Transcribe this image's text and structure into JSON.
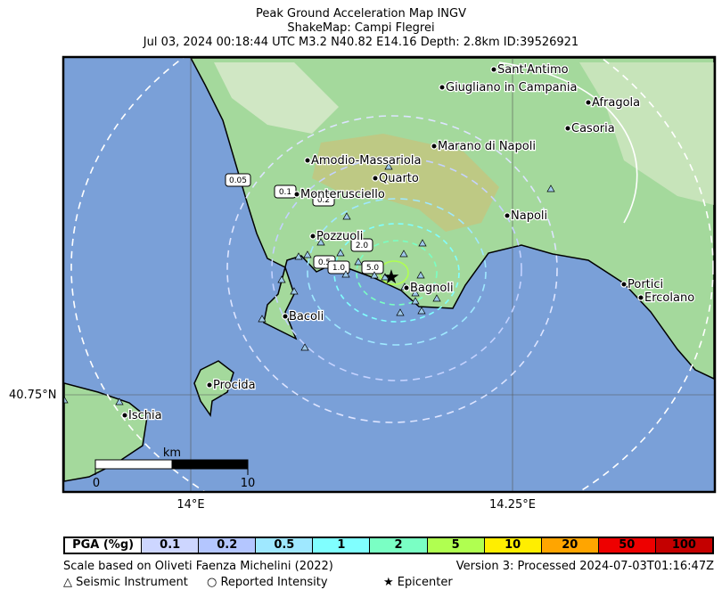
{
  "title": {
    "line1": "Peak Ground Acceleration Map INGV",
    "line2": "ShakeMap: Campi Flegrei",
    "line3": "Jul 03, 2024 00:18:44 UTC M3.2 N40.82 E14.16 Depth: 2.8km ID:39526921"
  },
  "colors": {
    "sea": "#7aa0d8",
    "land_low": "#9ed69a",
    "land_mid": "#c9c27a",
    "land_high": "#e8f0e0"
  },
  "axes": {
    "lat_label": "40.75°N",
    "lon_label_1": "14°E",
    "lon_label_2": "14.25°E"
  },
  "places": [
    {
      "name": "Sant'Antimo"
    },
    {
      "name": "Giugliano in Campania"
    },
    {
      "name": "Afragola"
    },
    {
      "name": "Casoria"
    },
    {
      "name": "Marano di Napoli"
    },
    {
      "name": "Amodio-Massariola"
    },
    {
      "name": "Quarto"
    },
    {
      "name": "Monterusciello"
    },
    {
      "name": "Napoli"
    },
    {
      "name": "Pozzuoli"
    },
    {
      "name": "Bagnoli"
    },
    {
      "name": "Bacoli"
    },
    {
      "name": "Portici"
    },
    {
      "name": "Ercolano"
    },
    {
      "name": "Procida"
    },
    {
      "name": "Ischia"
    }
  ],
  "contours": [
    {
      "label": "0.05"
    },
    {
      "label": "0.1"
    },
    {
      "label": "0.2"
    },
    {
      "label": "0.5"
    },
    {
      "label": "1.0"
    },
    {
      "label": "2.0"
    },
    {
      "label": "5.0"
    }
  ],
  "scalebar": {
    "unit": "km",
    "start": "0",
    "end": "10"
  },
  "legend": {
    "header": "PGA (%g)",
    "bins": [
      {
        "label": "0.1",
        "color": "#cdd6ff"
      },
      {
        "label": "0.2",
        "color": "#b4c6ff"
      },
      {
        "label": "0.5",
        "color": "#9fe8ff"
      },
      {
        "label": "1",
        "color": "#80ffff"
      },
      {
        "label": "2",
        "color": "#7affc4"
      },
      {
        "label": "5",
        "color": "#b0ff50"
      },
      {
        "label": "10",
        "color": "#ffee00"
      },
      {
        "label": "20",
        "color": "#ffa500"
      },
      {
        "label": "50",
        "color": "#ee0000"
      },
      {
        "label": "100",
        "color": "#c40000"
      }
    ]
  },
  "footer": {
    "scale_note": "Scale based on Oliveti Faenza Michelini (2022)",
    "version": "Version 3: Processed 2024-07-03T01:16:47Z",
    "key_instrument": "△  Seismic Instrument",
    "key_intensity": "○  Reported Intensity",
    "key_epicenter": "★  Epicenter"
  }
}
